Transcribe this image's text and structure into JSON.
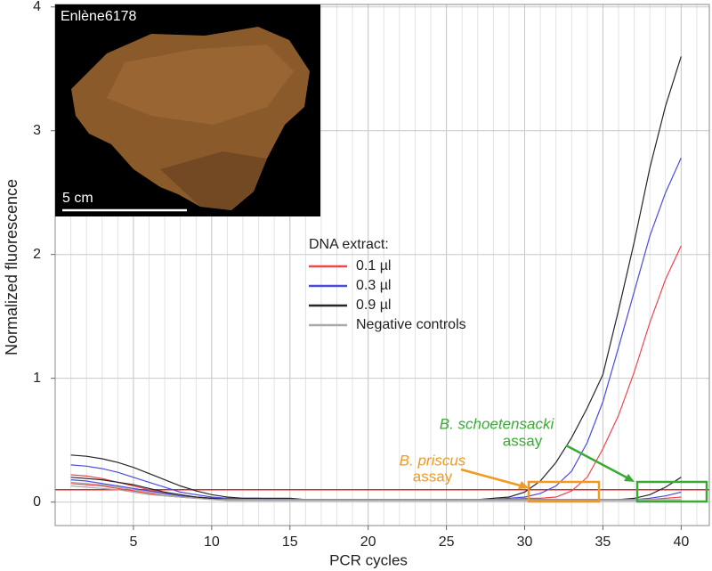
{
  "chart_data": {
    "type": "line",
    "xlabel": "PCR cycles",
    "ylabel": "Normalized fluorescence",
    "xlim": [
      0,
      41.8
    ],
    "ylim": [
      -0.19,
      4.02
    ],
    "xticks": [
      5,
      10,
      15,
      20,
      25,
      30,
      35,
      40
    ],
    "yticks": [
      0,
      1,
      2,
      3,
      4
    ],
    "x_minor_ticks": [
      1,
      2,
      3,
      4,
      5,
      6,
      7,
      8,
      9,
      10,
      11,
      12,
      13,
      14,
      15,
      16,
      17,
      18,
      19,
      20,
      21,
      22,
      23,
      24,
      25,
      26,
      27,
      28,
      29,
      30,
      31,
      32,
      33,
      34,
      35,
      36,
      37,
      38,
      39,
      40,
      41
    ],
    "grid": true,
    "legend_title": "DNA extract:",
    "threshold": {
      "value": 0.1,
      "color": "#e8262a"
    },
    "x": [
      1,
      2,
      3,
      4,
      5,
      6,
      7,
      8,
      9,
      10,
      11,
      12,
      13,
      14,
      15,
      16,
      17,
      18,
      19,
      20,
      21,
      22,
      23,
      24,
      25,
      26,
      27,
      28,
      29,
      30,
      31,
      32,
      33,
      34,
      35,
      36,
      37,
      38,
      39,
      40
    ],
    "series": [
      {
        "name": "0.1 µl",
        "color": "#f0474a",
        "lines": [
          [
            0.22,
            0.21,
            0.19,
            0.16,
            0.13,
            0.1,
            0.07,
            0.05,
            0.04,
            0.03,
            0.03,
            0.02,
            0.02,
            0.02,
            0.02,
            0.02,
            0.02,
            0.02,
            0.02,
            0.02,
            0.02,
            0.02,
            0.02,
            0.02,
            0.02,
            0.02,
            0.02,
            0.02,
            0.02,
            0.03,
            0.03,
            0.04,
            0.09,
            0.2,
            0.43,
            0.7,
            1.05,
            1.45,
            1.8,
            2.07
          ],
          [
            0.15,
            0.14,
            0.13,
            0.11,
            0.09,
            0.07,
            0.05,
            0.04,
            0.03,
            0.03,
            0.02,
            0.02,
            0.02,
            0.02,
            0.02,
            0.02,
            0.02,
            0.02,
            0.02,
            0.02,
            0.02,
            0.02,
            0.02,
            0.02,
            0.02,
            0.02,
            0.02,
            0.02,
            0.02,
            0.02,
            0.02,
            0.02,
            0.02,
            0.02,
            0.02,
            0.02,
            0.02,
            0.02,
            0.03,
            0.04
          ]
        ]
      },
      {
        "name": "0.3 µl",
        "color": "#4b4be0",
        "lines": [
          [
            0.3,
            0.29,
            0.27,
            0.24,
            0.2,
            0.16,
            0.12,
            0.08,
            0.06,
            0.04,
            0.03,
            0.03,
            0.03,
            0.02,
            0.02,
            0.02,
            0.02,
            0.02,
            0.02,
            0.02,
            0.02,
            0.02,
            0.02,
            0.02,
            0.02,
            0.02,
            0.02,
            0.02,
            0.03,
            0.04,
            0.07,
            0.13,
            0.25,
            0.48,
            0.81,
            1.25,
            1.7,
            2.15,
            2.5,
            2.78
          ],
          [
            0.18,
            0.17,
            0.15,
            0.13,
            0.11,
            0.09,
            0.07,
            0.05,
            0.04,
            0.03,
            0.02,
            0.02,
            0.02,
            0.02,
            0.02,
            0.02,
            0.02,
            0.02,
            0.02,
            0.02,
            0.02,
            0.02,
            0.02,
            0.02,
            0.02,
            0.02,
            0.02,
            0.02,
            0.02,
            0.02,
            0.02,
            0.02,
            0.02,
            0.02,
            0.02,
            0.02,
            0.02,
            0.03,
            0.05,
            0.08
          ]
        ]
      },
      {
        "name": "0.9 µl",
        "color": "#262626",
        "lines": [
          [
            0.38,
            0.37,
            0.35,
            0.32,
            0.28,
            0.23,
            0.18,
            0.13,
            0.09,
            0.06,
            0.04,
            0.03,
            0.03,
            0.03,
            0.03,
            0.02,
            0.02,
            0.02,
            0.02,
            0.02,
            0.02,
            0.02,
            0.02,
            0.02,
            0.02,
            0.02,
            0.02,
            0.03,
            0.04,
            0.08,
            0.17,
            0.32,
            0.52,
            0.76,
            1.03,
            1.55,
            2.1,
            2.7,
            3.2,
            3.6
          ],
          [
            0.2,
            0.19,
            0.18,
            0.16,
            0.14,
            0.11,
            0.08,
            0.06,
            0.04,
            0.03,
            0.02,
            0.02,
            0.02,
            0.02,
            0.02,
            0.02,
            0.02,
            0.02,
            0.02,
            0.02,
            0.02,
            0.02,
            0.02,
            0.02,
            0.02,
            0.02,
            0.02,
            0.02,
            0.02,
            0.02,
            0.02,
            0.02,
            0.02,
            0.02,
            0.02,
            0.02,
            0.03,
            0.06,
            0.12,
            0.2
          ]
        ]
      },
      {
        "name": "Negative controls",
        "color": "#aaaaaa",
        "lines": [
          [
            0.16,
            0.15,
            0.14,
            0.12,
            0.1,
            0.08,
            0.06,
            0.04,
            0.03,
            0.02,
            0.02,
            0.02,
            0.02,
            0.02,
            0.02,
            0.02,
            0.02,
            0.02,
            0.02,
            0.02,
            0.02,
            0.02,
            0.02,
            0.02,
            0.02,
            0.02,
            0.02,
            0.02,
            0.02,
            0.02,
            0.02,
            0.02,
            0.02,
            0.02,
            0.02,
            0.02,
            0.02,
            0.02,
            0.02,
            0.02
          ],
          [
            0.13,
            0.12,
            0.11,
            0.1,
            0.08,
            0.06,
            0.05,
            0.04,
            0.03,
            0.02,
            0.01,
            0.01,
            0.01,
            0.01,
            0.01,
            0.01,
            0.01,
            0.01,
            0.01,
            0.01,
            0.01,
            0.01,
            0.01,
            0.01,
            0.01,
            0.01,
            0.01,
            0.01,
            0.01,
            0.01,
            0.01,
            0.01,
            0.01,
            0.01,
            0.01,
            0.01,
            0.01,
            0.01,
            0.01,
            0.01
          ]
        ]
      }
    ],
    "annotations": [
      {
        "species": "B. schoetensacki",
        "text": "assay",
        "color": "#3aaa35"
      },
      {
        "species": "B. priscus",
        "text": "assay",
        "color": "#f39a1e"
      }
    ],
    "inset": {
      "label": "Enlène6178",
      "scale_label": "5 cm"
    }
  }
}
